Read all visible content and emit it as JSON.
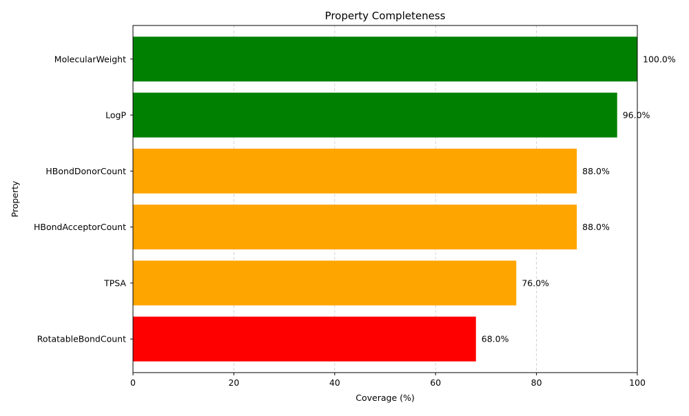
{
  "chart_data": {
    "type": "bar",
    "orientation": "horizontal",
    "title": "Property Completeness",
    "xlabel": "Coverage (%)",
    "ylabel": "Property",
    "xlim": [
      0,
      100
    ],
    "xticks": [
      0,
      20,
      40,
      60,
      80,
      100
    ],
    "grid": {
      "x": true,
      "y": false,
      "style": "dashed"
    },
    "categories": [
      "MolecularWeight",
      "LogP",
      "HBondDonorCount",
      "HBondAcceptorCount",
      "TPSA",
      "RotatableBondCount"
    ],
    "values": [
      100.0,
      96.0,
      88.0,
      88.0,
      76.0,
      68.0
    ],
    "data_labels": [
      "100.0%",
      "96.0%",
      "88.0%",
      "88.0%",
      "76.0%",
      "68.0%"
    ],
    "bar_colors": [
      "#008000",
      "#008000",
      "#ffa500",
      "#ffa500",
      "#ffa500",
      "#ff0000"
    ]
  }
}
